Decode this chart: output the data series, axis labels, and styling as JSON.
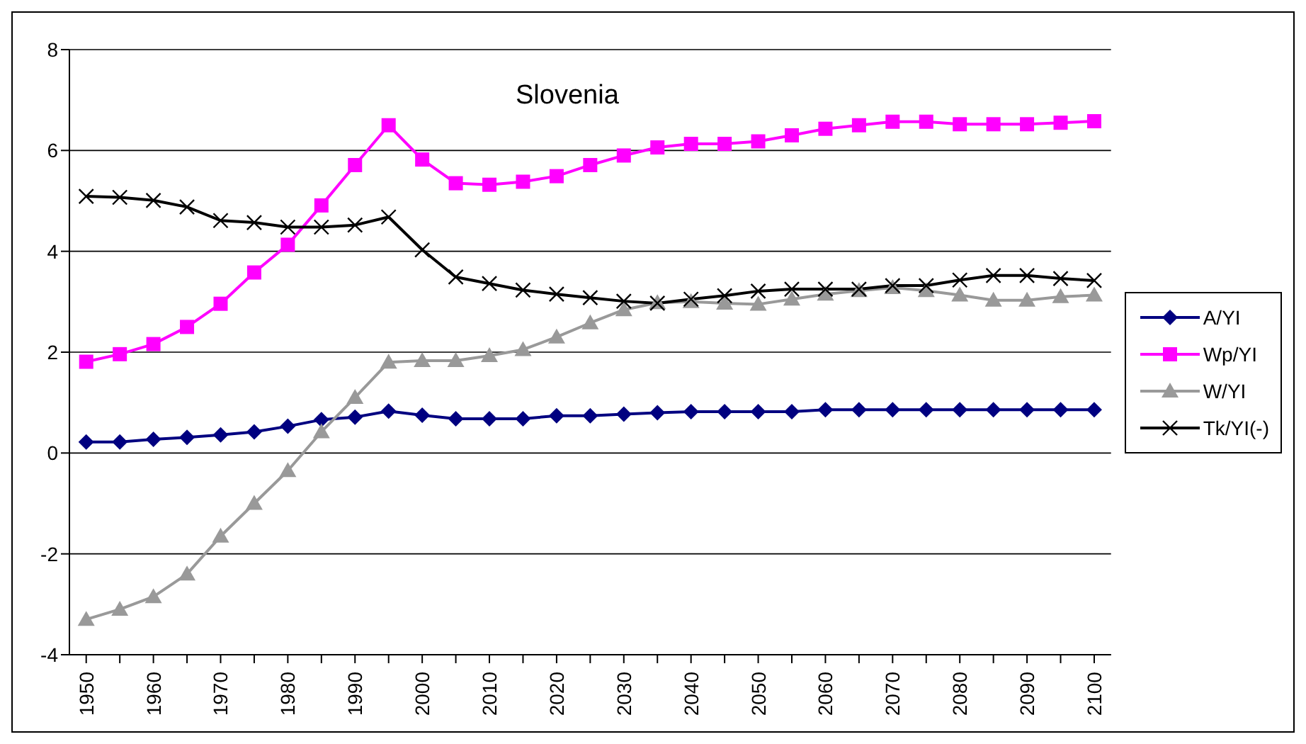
{
  "chart_data": {
    "type": "line",
    "title": "Slovenia",
    "categories": [
      "1950",
      null,
      "1960",
      null,
      "1970",
      null,
      "1980",
      null,
      "1990",
      null,
      "2000",
      null,
      "2010",
      null,
      "2020",
      null,
      "2030",
      null,
      "2040",
      null,
      "2050",
      null,
      "2060",
      null,
      "2070",
      null,
      "2080",
      null,
      "2090",
      null,
      "2100"
    ],
    "ylim": [
      -4,
      8
    ],
    "yticks": [
      -4,
      -2,
      0,
      2,
      4,
      6,
      8
    ],
    "grid": "y",
    "legend": "right",
    "line_style": "solid",
    "series": [
      {
        "name": "A/YI",
        "color": "#000080",
        "marker": "diamond",
        "values": [
          0.22,
          0.22,
          0.27,
          0.31,
          0.36,
          0.42,
          0.53,
          0.66,
          0.71,
          0.83,
          0.75,
          0.68,
          0.68,
          0.68,
          0.74,
          0.74,
          0.77,
          0.8,
          0.82,
          0.82,
          0.82,
          0.82,
          0.86,
          0.86,
          0.86,
          0.86,
          0.86,
          0.86,
          0.86,
          0.86,
          0.86
        ]
      },
      {
        "name": "Wp/YI",
        "color": "#ff00ff",
        "marker": "square",
        "values": [
          1.81,
          1.96,
          2.16,
          2.5,
          2.96,
          3.58,
          4.13,
          4.91,
          5.71,
          6.5,
          5.82,
          5.35,
          5.32,
          5.38,
          5.49,
          5.71,
          5.9,
          6.06,
          6.13,
          6.13,
          6.18,
          6.3,
          6.43,
          6.5,
          6.57,
          6.57,
          6.52,
          6.52,
          6.52,
          6.55,
          6.58
        ]
      },
      {
        "name": "W/YI",
        "color": "#999999",
        "marker": "triangle",
        "values": [
          -3.3,
          -3.1,
          -2.85,
          -2.4,
          -1.65,
          -1.0,
          -0.35,
          0.42,
          1.1,
          1.8,
          1.83,
          1.83,
          1.93,
          2.05,
          2.3,
          2.58,
          2.84,
          2.98,
          3.0,
          2.97,
          2.95,
          3.05,
          3.15,
          3.22,
          3.28,
          3.22,
          3.13,
          3.03,
          3.03,
          3.1,
          3.13
        ]
      },
      {
        "name": "Tk/YI(-)",
        "color": "#000000",
        "marker": "cross",
        "values": [
          5.09,
          5.07,
          5.01,
          4.88,
          4.61,
          4.57,
          4.48,
          4.48,
          4.52,
          4.68,
          4.03,
          3.49,
          3.36,
          3.23,
          3.15,
          3.08,
          3.01,
          2.97,
          3.05,
          3.12,
          3.21,
          3.25,
          3.25,
          3.25,
          3.32,
          3.32,
          3.43,
          3.52,
          3.52,
          3.46,
          3.42
        ]
      }
    ]
  }
}
